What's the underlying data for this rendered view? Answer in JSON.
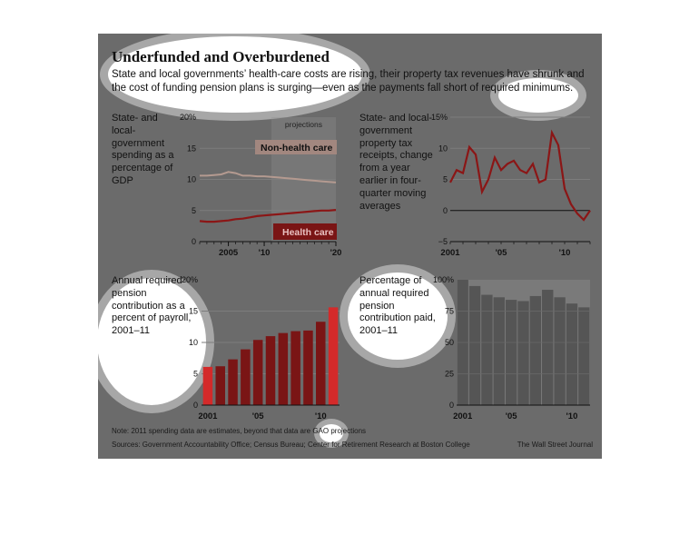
{
  "title": "Underfunded and Overburdened",
  "subtitle": "State and local governments’ health-care costs are rising, their property tax revenues have shrunk and the cost of funding pension plans is surging—even as the payments fall short of required minimums.",
  "note": "Note: 2011 spending data are estimates, beyond that data are GAO projections",
  "sources": "Sources: Government Accountability Office; Census Bureau; Center for Retirement Research at Boston College",
  "credit": "The Wall Street Journal",
  "colors": {
    "panel_bg": "#6b6b6b",
    "dark_red": "#7a1515",
    "line_red": "#8b1616",
    "bright_red": "#d42a2a",
    "light_gray": "#8f8f8f"
  },
  "chart_data": [
    {
      "type": "line",
      "title": "State- and local-government spending as a percentage of GDP",
      "x": [
        2001,
        2002,
        2003,
        2004,
        2005,
        2006,
        2007,
        2008,
        2009,
        2010,
        2011,
        2012,
        2013,
        2014,
        2015,
        2016,
        2017,
        2018,
        2019,
        2020
      ],
      "series": [
        {
          "name": "Non-health care",
          "values": [
            10.6,
            10.6,
            10.7,
            10.8,
            11.2,
            11.0,
            10.6,
            10.6,
            10.5,
            10.5,
            10.4,
            10.3,
            10.2,
            10.1,
            10.0,
            9.9,
            9.8,
            9.7,
            9.6,
            9.5
          ]
        },
        {
          "name": "Health care",
          "values": [
            3.3,
            3.2,
            3.2,
            3.3,
            3.4,
            3.6,
            3.7,
            3.9,
            4.1,
            4.2,
            4.3,
            4.4,
            4.5,
            4.6,
            4.7,
            4.8,
            4.9,
            5.0,
            5.0,
            5.1
          ]
        }
      ],
      "annotation": "projections",
      "xticks": [
        "2005",
        "'10",
        "'20"
      ],
      "yticks": [
        "20%",
        "15",
        "10",
        "5",
        "0"
      ],
      "ylim": [
        0,
        20
      ]
    },
    {
      "type": "line",
      "title": "State- and local-government property tax receipts, change from a year earlier in four-quarter moving averages",
      "x": [
        2001,
        2001.5,
        2002,
        2002.5,
        2003,
        2003.5,
        2004,
        2004.5,
        2005,
        2005.5,
        2006,
        2006.5,
        2007,
        2007.5,
        2008,
        2008.5,
        2009,
        2009.5,
        2010,
        2010.5,
        2011,
        2011.5,
        2012
      ],
      "values": [
        4.5,
        6.5,
        6.0,
        10.2,
        9.0,
        3.0,
        5.0,
        8.5,
        6.5,
        7.5,
        8.0,
        6.5,
        6.0,
        7.5,
        4.5,
        5.0,
        12.5,
        10.5,
        3.5,
        1.0,
        -0.5,
        -1.5,
        0.0
      ],
      "xticks": [
        "2001",
        "'05",
        "'10"
      ],
      "yticks": [
        "15%",
        "10",
        "5",
        "0",
        "−5"
      ],
      "ylim": [
        -5,
        15
      ]
    },
    {
      "type": "bar",
      "title": "Annual required pension contribution as a percent of payroll, 2001–11",
      "categories": [
        "2001",
        "2002",
        "2003",
        "2004",
        "2005",
        "2006",
        "2007",
        "2008",
        "2009",
        "2010",
        "2011"
      ],
      "values": [
        6.1,
        6.2,
        7.3,
        8.9,
        10.4,
        11.0,
        11.5,
        11.8,
        11.9,
        13.3,
        15.6
      ],
      "xticks": [
        "2001",
        "'05",
        "'10"
      ],
      "yticks": [
        "20%",
        "15",
        "10",
        "5",
        "0"
      ],
      "ylim": [
        0,
        20
      ]
    },
    {
      "type": "bar",
      "title": "Percentage of annual required pension contribution paid, 2001–11",
      "categories": [
        "2001",
        "2002",
        "2003",
        "2004",
        "2005",
        "2006",
        "2007",
        "2008",
        "2009",
        "2010",
        "2011"
      ],
      "values": [
        100,
        95,
        88,
        86,
        84,
        83,
        87,
        92,
        86,
        81,
        78
      ],
      "xticks": [
        "2001",
        "'05",
        "'10"
      ],
      "yticks": [
        "100%",
        "75",
        "50",
        "25",
        "0"
      ],
      "ylim": [
        0,
        100
      ]
    }
  ]
}
